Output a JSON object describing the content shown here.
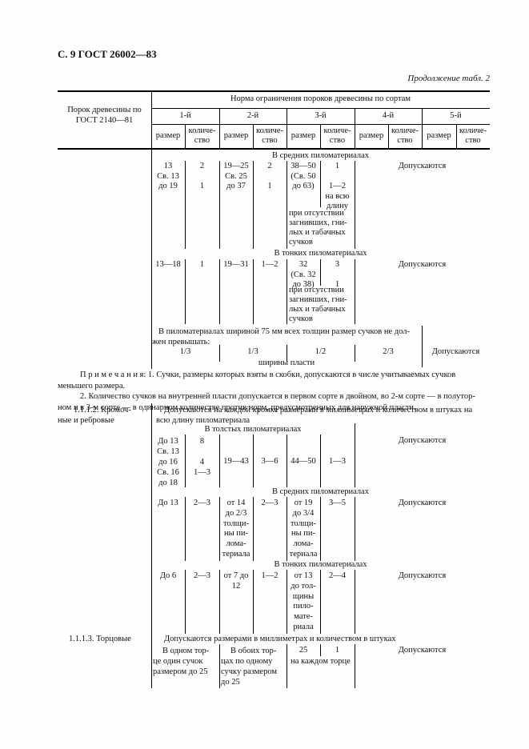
{
  "page": {
    "header": "С. 9 ГОСТ 26002—83",
    "continuation": "Продолжение табл. 2"
  },
  "thead": {
    "defect_col": "Порок древесины по\nГОСТ 2140—81",
    "norm": "Норма ограничения пороков древесины по сортам",
    "grades": [
      "1-й",
      "2-й",
      "3-й",
      "4-й",
      "5-й"
    ],
    "size": "размер",
    "count": "количе-\nство"
  },
  "medium1": {
    "title": "В средних пиломатериалах",
    "g1_size": "13\nСв. 13\nдо 19",
    "g1_count": "2\n\n1",
    "g2_size": "19—25\nСв. 25\nдо 37",
    "g2_count": "2\n\n1",
    "g3_size": "38—50\n(Св. 50\nдо 63)",
    "g3_count": "1\n\n1—2\nна всю\nдлину",
    "g3_note": "при отсутствии\nзагнивших, гни-\nлых и табачных\nсучков",
    "allowed": "Допускаются"
  },
  "thin1": {
    "title": "В тонких пиломатериалах",
    "g1_size": "13—18",
    "g1_count": "1",
    "g2_size": "19—31",
    "g2_count": "1—2",
    "g3_size": "32\n(Св. 32\nдо 38)",
    "g3_count": "3\n\n1",
    "g3_note": "при отсутствии\nзагнивших, гни-\nлых и табачных\nсучков",
    "allowed": "Допускаются"
  },
  "width75": {
    "intro": "В пиломатериалах шириной 75 мм всех толщин размер сучков не дол-\nжен превышать:",
    "fractions": [
      "1/3",
      "1/3",
      "1/2",
      "2/3"
    ],
    "footer": "ширины пласти",
    "allowed": "Допускаются"
  },
  "notes": {
    "para1": "П р и м е ч а н и я:  1.  Сучки, размеры которых взяты в скобки, допускаются в числе учитываемых сучков\nменьшего размера.",
    "para2": "2.  Количество сучков на внутренней пласти допускается в первом сорте в двойном, во 2-м сорте — в полутор-\nном и в 3-м сорте — в одинарном количестве против норм, предусмотренных для наружной пласти."
  },
  "edge": {
    "label": "1.1.1.2.  Кромоч-\nные и ребровые",
    "desc": "Допускаются на каждой кромке размерами в миллиметрах и количеством в штуках на\nвсю длину пиломатериала"
  },
  "thick": {
    "title": "В толстых пиломатериалах",
    "g1_size": "До 13\nСв. 13\nдо 16\nСв. 16\nдо 18",
    "g1_count": "8\n\n4\n1—3",
    "g2_size": "19—43",
    "g2_count": "3—6",
    "g3_size": "44—50",
    "g3_count": "1—3",
    "allowed": "Допускаются"
  },
  "medium2": {
    "title": "В средних пиломатериалах",
    "g1_size": "До 13",
    "g1_count": "2—3",
    "g2_size": "от 14\nдо 2/3\nтолщи-\nны пи-\nлома-\nтериала",
    "g2_count": "2—3",
    "g3_size": "от 19\nдо 3/4\nтолщи-\nны пи-\nлома-\nтериала",
    "g3_count": "3—5",
    "allowed": "Допускаются"
  },
  "thin2": {
    "title": "В тонких пиломатериалах",
    "g1_size": "До 6",
    "g1_count": "2—3",
    "g2_size": "от 7 до\n12",
    "g2_count": "1—2",
    "g3_size": "от 13\nдо тол-\nщины\nпило-\nмате-\nриала",
    "g3_count": "2—4",
    "allowed": "Допускаются"
  },
  "butt": {
    "label": "1.1.1.3.  Торцовые",
    "desc": "Допускаются размерами в миллиметрах и количеством в штуках",
    "g1": "В одном тор-\nце один сучок\nразмером до 25",
    "g2": "В обоих тор-\nцах по одному\nсучку размером\nдо 25",
    "g3_size": "25",
    "g3_count": "1",
    "g3_note": "на каждом торце",
    "allowed": "Допускаются"
  }
}
